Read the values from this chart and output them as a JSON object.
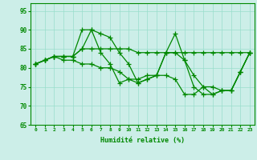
{
  "xlabel": "Humidité relative (%)",
  "xlim": [
    -0.5,
    23.5
  ],
  "ylim": [
    65,
    97
  ],
  "yticks": [
    65,
    70,
    75,
    80,
    85,
    90,
    95
  ],
  "xticks": [
    0,
    1,
    2,
    3,
    4,
    5,
    6,
    7,
    8,
    9,
    10,
    11,
    12,
    13,
    14,
    15,
    16,
    17,
    18,
    19,
    20,
    21,
    22,
    23
  ],
  "background_color": "#cceee8",
  "grid_color": "#99ddcc",
  "line_color": "#008800",
  "line1": [
    81,
    82,
    83,
    83,
    83,
    90,
    90,
    89,
    88,
    84,
    81,
    76,
    77,
    78,
    84,
    89,
    82,
    78,
    75,
    75,
    74,
    74,
    79,
    84
  ],
  "line2": [
    81,
    82,
    83,
    83,
    83,
    85,
    90,
    84,
    81,
    76,
    77,
    77,
    78,
    78,
    84,
    84,
    82,
    75,
    73,
    73,
    74,
    74,
    79,
    84
  ],
  "line3": [
    81,
    82,
    83,
    83,
    83,
    85,
    85,
    85,
    85,
    85,
    85,
    84,
    84,
    84,
    84,
    84,
    84,
    84,
    84,
    84,
    84,
    84,
    84,
    84
  ],
  "line4": [
    81,
    82,
    83,
    82,
    82,
    81,
    81,
    80,
    80,
    79,
    77,
    76,
    77,
    78,
    78,
    77,
    73,
    73,
    75,
    73,
    74,
    74,
    79,
    84
  ]
}
